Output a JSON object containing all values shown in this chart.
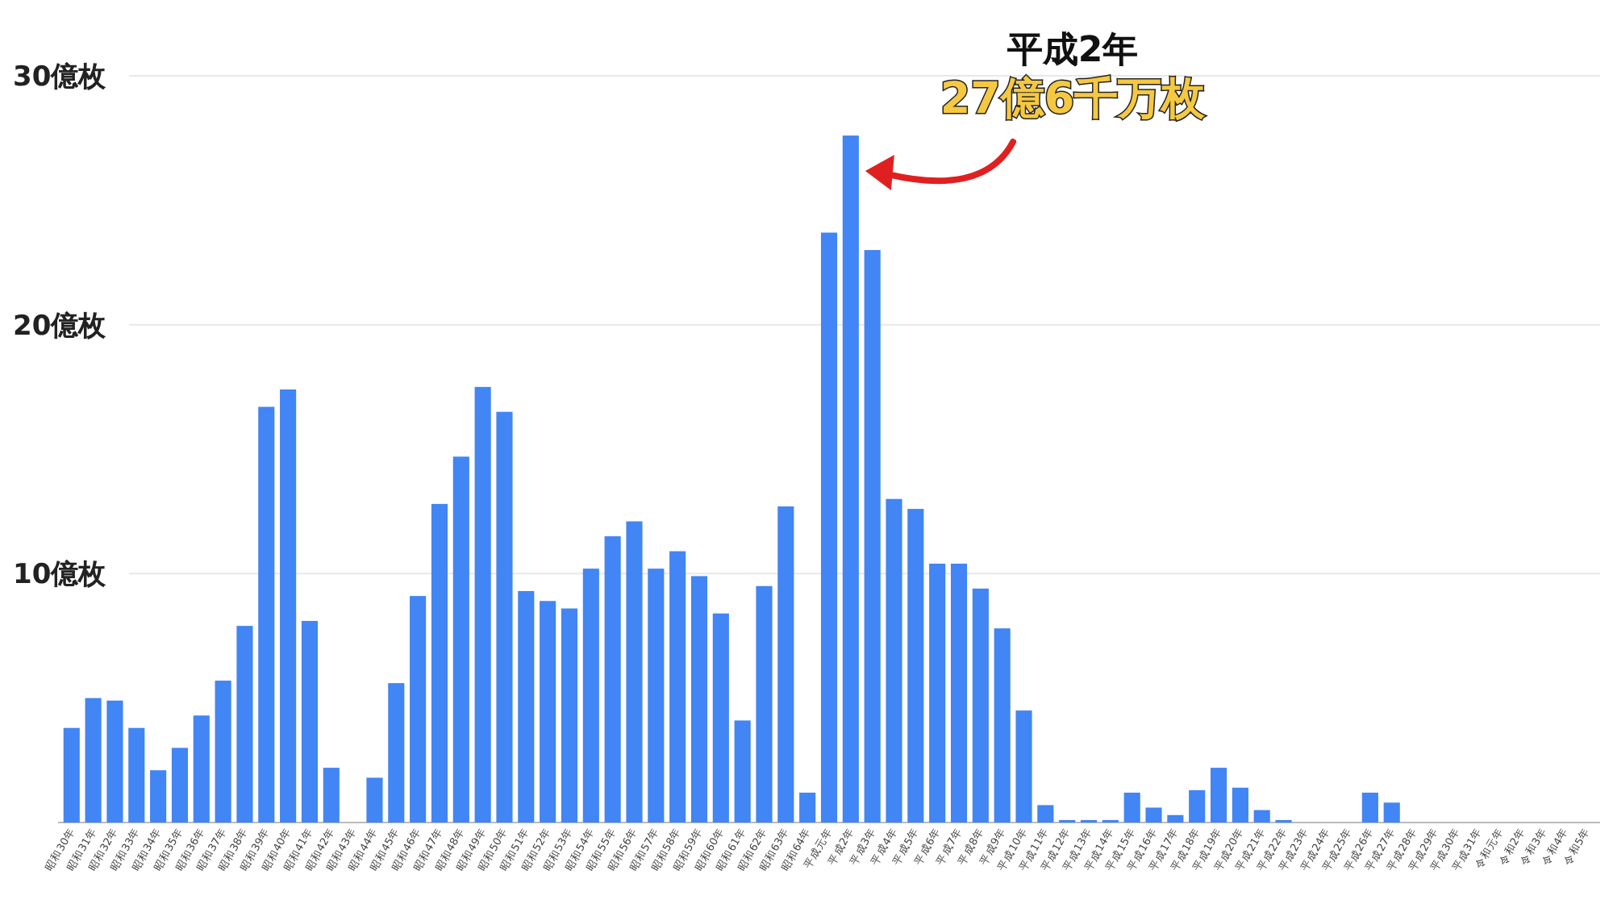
{
  "chart_data": {
    "type": "bar",
    "categories": [
      "昭和30年",
      "昭和31年",
      "昭和32年",
      "昭和33年",
      "昭和34年",
      "昭和35年",
      "昭和36年",
      "昭和37年",
      "昭和38年",
      "昭和39年",
      "昭和40年",
      "昭和41年",
      "昭和42年",
      "昭和43年",
      "昭和44年",
      "昭和45年",
      "昭和46年",
      "昭和47年",
      "昭和48年",
      "昭和49年",
      "昭和50年",
      "昭和51年",
      "昭和52年",
      "昭和53年",
      "昭和54年",
      "昭和55年",
      "昭和56年",
      "昭和57年",
      "昭和58年",
      "昭和59年",
      "昭和60年",
      "昭和61年",
      "昭和62年",
      "昭和63年",
      "昭和64年",
      "平成元年",
      "平成2年",
      "平成3年",
      "平成4年",
      "平成5年",
      "平成6年",
      "平成7年",
      "平成8年",
      "平成9年",
      "平成10年",
      "平成11年",
      "平成12年",
      "平成13年",
      "平成14年",
      "平成15年",
      "平成16年",
      "平成17年",
      "平成18年",
      "平成19年",
      "平成20年",
      "平成21年",
      "平成22年",
      "平成23年",
      "平成24年",
      "平成25年",
      "平成26年",
      "平成27年",
      "平成28年",
      "平成29年",
      "平成30年",
      "平成31年",
      "令和元年",
      "令和2年",
      "令和3年",
      "令和4年",
      "令和5年"
    ],
    "values": [
      3.8,
      5.0,
      4.9,
      3.8,
      2.1,
      3.0,
      4.3,
      5.7,
      7.9,
      16.7,
      17.4,
      8.1,
      2.2,
      0,
      1.8,
      5.6,
      9.1,
      12.8,
      14.7,
      17.5,
      16.5,
      9.3,
      8.9,
      8.6,
      10.2,
      11.5,
      12.1,
      10.2,
      10.9,
      9.9,
      8.4,
      4.1,
      9.5,
      12.7,
      1.2,
      23.7,
      27.6,
      23.0,
      13.0,
      12.6,
      10.4,
      10.4,
      9.4,
      7.8,
      4.5,
      0.7,
      0.1,
      0.1,
      0.1,
      1.2,
      0.6,
      0.3,
      1.3,
      2.2,
      1.4,
      0.5,
      0.1,
      0,
      0,
      0,
      1.2,
      0.8,
      0,
      0,
      0,
      0,
      0,
      0,
      0,
      0,
      0
    ],
    "color": "#4285f4",
    "ylim": [
      0,
      30
    ],
    "yticks": [
      {
        "value": 0,
        "label": null
      },
      {
        "value": 10,
        "label": "10億枚"
      },
      {
        "value": 20,
        "label": "20億枚"
      },
      {
        "value": 30,
        "label": "30億枚"
      }
    ],
    "grid": "y",
    "annotations": [
      {
        "text": "平成2年\n27億6千万枚",
        "x": "平成2年",
        "y": 27.6
      }
    ]
  }
}
